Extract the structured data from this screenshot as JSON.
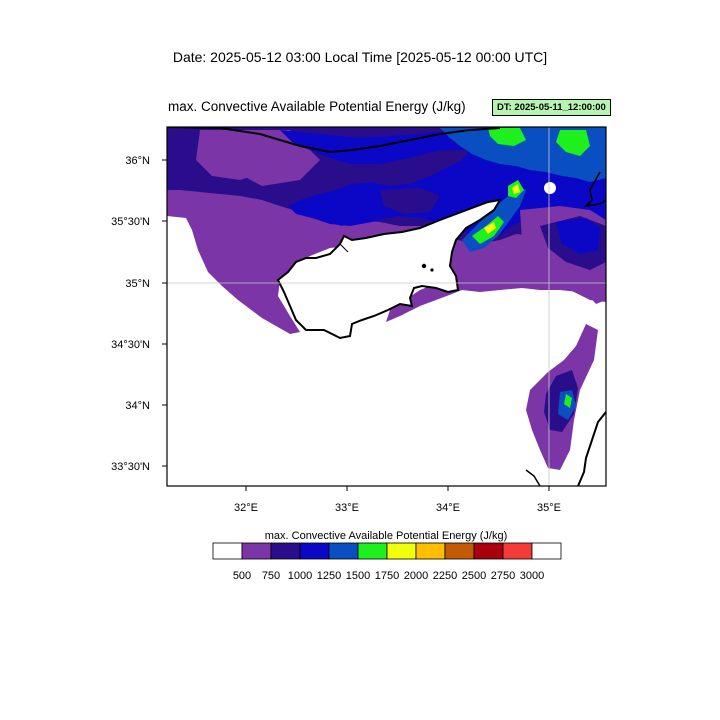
{
  "header": {
    "date_line": "Date: 2025-05-12  03:00 Local Time [2025-05-12  00:00 UTC]"
  },
  "plot": {
    "title": "max. Convective Available Potential Energy   (J/kg)",
    "dt_badge": "DT: 2025-05-11_12:00:00"
  },
  "map": {
    "region": "Cyprus and eastern Mediterranean",
    "lat_labels": [
      "36°N",
      "35°30'N",
      "35°N",
      "34°30'N",
      "34°N",
      "33°30'N"
    ],
    "lon_labels": [
      "32°E",
      "33°E",
      "34°E",
      "35°E"
    ],
    "gridline_lat_label": "35°N",
    "gridline_lon_label": "35°E"
  },
  "colorbar": {
    "title": "max. Convective Available Potential Energy  (J/kg)",
    "levels": [
      "500",
      "750",
      "1000",
      "1250",
      "1500",
      "1750",
      "2000",
      "2250",
      "2500",
      "2750",
      "3000"
    ],
    "colors": [
      "#ffffff",
      "#7b35a6",
      "#2a0d8a",
      "#0a08c6",
      "#0a4fc2",
      "#1ef01e",
      "#f2ff0a",
      "#ffbf00",
      "#c25a06",
      "#a9000d",
      "#f53a3a",
      "#ffffff"
    ]
  }
}
